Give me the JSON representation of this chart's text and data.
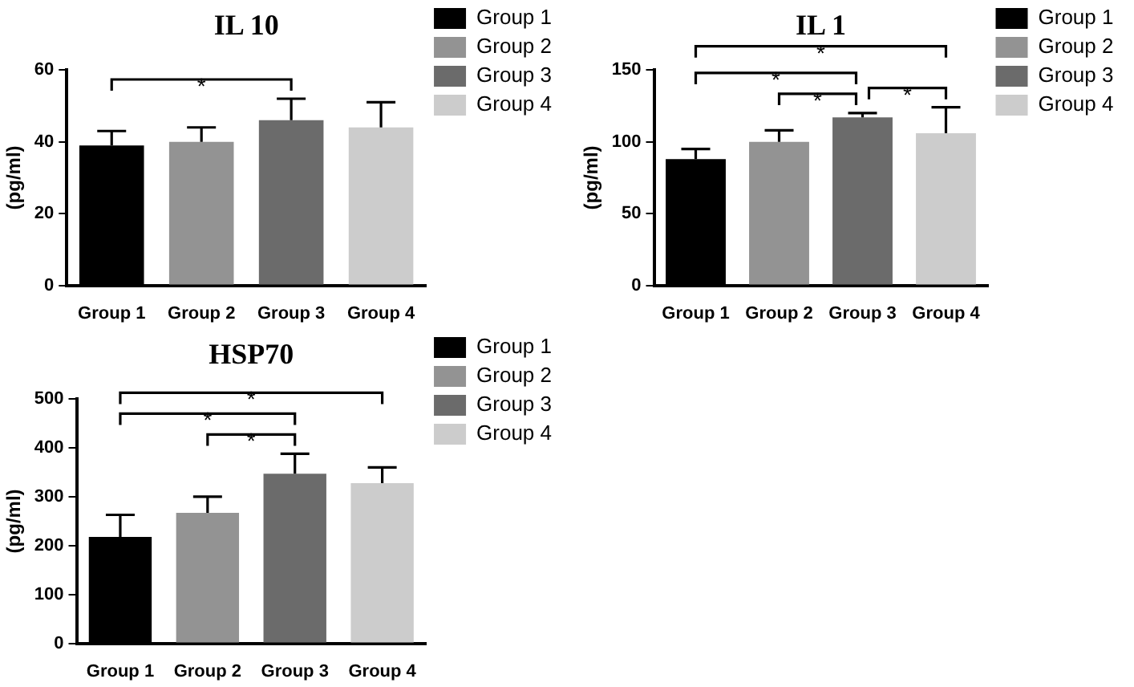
{
  "chart_data": [
    {
      "type": "bar",
      "title": "IL 10",
      "ylabel": "(pg/ml)",
      "categories": [
        "Group 1",
        "Group 2",
        "Group 3",
        "Group 4"
      ],
      "series": [
        {
          "name": "Group 1",
          "color": "#000000",
          "values": [
            39,
            null,
            null,
            null
          ],
          "errors": [
            [
              39,
              43
            ],
            null,
            null,
            null
          ]
        },
        {
          "name": "Group 2",
          "color": "#939393",
          "values": [
            null,
            40,
            null,
            null
          ],
          "errors": [
            null,
            [
              40,
              44
            ],
            null,
            null
          ]
        },
        {
          "name": "Group 3",
          "color": "#6b6b6b",
          "values": [
            null,
            null,
            46,
            null
          ],
          "errors": [
            null,
            null,
            [
              46,
              52
            ],
            null
          ]
        },
        {
          "name": "Group 4",
          "color": "#cccccc",
          "values": [
            null,
            null,
            null,
            44
          ],
          "errors": [
            null,
            null,
            null,
            [
              44,
              51
            ]
          ]
        }
      ],
      "ylim": [
        0,
        60
      ],
      "yticks": [
        0,
        20,
        40,
        60
      ],
      "grid": false,
      "legend": "right",
      "annotations": [
        "*"
      ]
    },
    {
      "type": "bar",
      "title": "IL 1",
      "ylabel": "(pg/ml)",
      "categories": [
        "Group 1",
        "Group 2",
        "Group 3",
        "Group 4"
      ],
      "series": [
        {
          "name": "Group 1",
          "color": "#000000",
          "values": [
            88,
            null,
            null,
            null
          ],
          "errors": [
            [
              88,
              95
            ],
            null,
            null,
            null
          ]
        },
        {
          "name": "Group 2",
          "color": "#939393",
          "values": [
            null,
            100,
            null,
            null
          ],
          "errors": [
            null,
            [
              100,
              108
            ],
            null,
            null
          ]
        },
        {
          "name": "Group 3",
          "color": "#6b6b6b",
          "values": [
            null,
            null,
            117,
            null
          ],
          "errors": [
            null,
            null,
            [
              117,
              120
            ],
            null
          ]
        },
        {
          "name": "Group 4",
          "color": "#cccccc",
          "values": [
            null,
            null,
            null,
            106
          ],
          "errors": [
            null,
            null,
            null,
            [
              106,
              124
            ]
          ]
        }
      ],
      "ylim": [
        0,
        150
      ],
      "yticks": [
        0,
        50,
        100,
        150
      ],
      "grid": false,
      "legend": "right",
      "annotations": [
        "*",
        "*",
        "*",
        "*"
      ]
    },
    {
      "type": "bar",
      "title": "HSP70",
      "ylabel": "(pg/ml)",
      "categories": [
        "Group 1",
        "Group 2",
        "Group 3",
        "Group 4"
      ],
      "series": [
        {
          "name": "Group 1",
          "color": "#000000",
          "values": [
            218,
            null,
            null,
            null
          ],
          "errors": [
            [
              218,
              263
            ],
            null,
            null,
            null
          ]
        },
        {
          "name": "Group 2",
          "color": "#939393",
          "values": [
            null,
            267,
            null,
            null
          ],
          "errors": [
            null,
            [
              267,
              300
            ],
            null,
            null
          ]
        },
        {
          "name": "Group 3",
          "color": "#6b6b6b",
          "values": [
            null,
            null,
            347,
            null
          ],
          "errors": [
            null,
            null,
            [
              347,
              388
            ],
            null
          ]
        },
        {
          "name": "Group 4",
          "color": "#cccccc",
          "values": [
            null,
            null,
            null,
            328
          ],
          "errors": [
            null,
            null,
            null,
            [
              328,
              360
            ]
          ]
        }
      ],
      "ylim": [
        0,
        500
      ],
      "yticks": [
        0,
        100,
        200,
        300,
        400,
        500
      ],
      "grid": false,
      "legend": "right",
      "annotations": [
        "*",
        "*",
        "*"
      ]
    }
  ]
}
